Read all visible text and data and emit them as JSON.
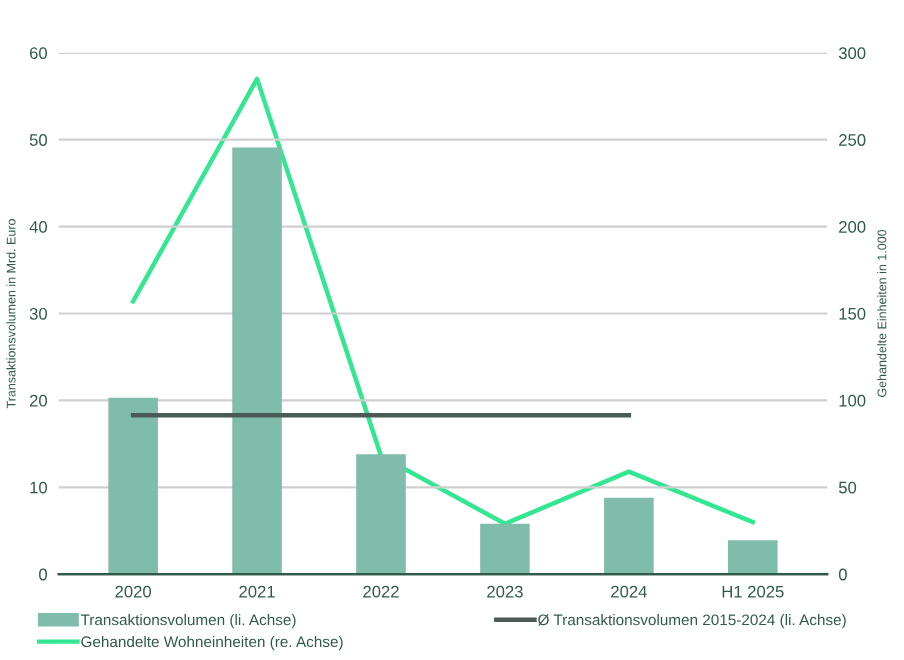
{
  "chart_data": {
    "type": "bar",
    "ylabel": "Transaktionsvolumen in Mrd. Euro",
    "y2label": "Gehandelte Einheiten in 1.000",
    "categories": [
      "2020",
      "2021",
      "2022",
      "2023",
      "2024",
      "H1 2025"
    ],
    "series": [
      {
        "name": "Transaktionsvolumen (li. Achse)",
        "color": "#80bcaa",
        "values": [
          20.3,
          49.1,
          13.8,
          5.8,
          8.8,
          3.9
        ]
      },
      {
        "name": "Ø Transaktionsvolumen 2015-2024 (li. Achse)",
        "type": "line",
        "color": "#4a5a55",
        "values": [
          18.3,
          18.3,
          18.3,
          18.3,
          18.3,
          null
        ]
      },
      {
        "name": "Gehandelte Wohneinheiten (re. Achse)",
        "type": "line",
        "axis": "y2",
        "color": "#33e691",
        "values": [
          157,
          285,
          68,
          29,
          59,
          30
        ]
      }
    ],
    "ylim": [
      0,
      60
    ],
    "yticks": [
      0,
      10,
      20,
      30,
      40,
      50,
      60
    ],
    "y2lim": [
      0,
      300
    ],
    "y2ticks": [
      0,
      50,
      100,
      150,
      200,
      250,
      300
    ],
    "grid": "y",
    "legend": "bottom"
  }
}
